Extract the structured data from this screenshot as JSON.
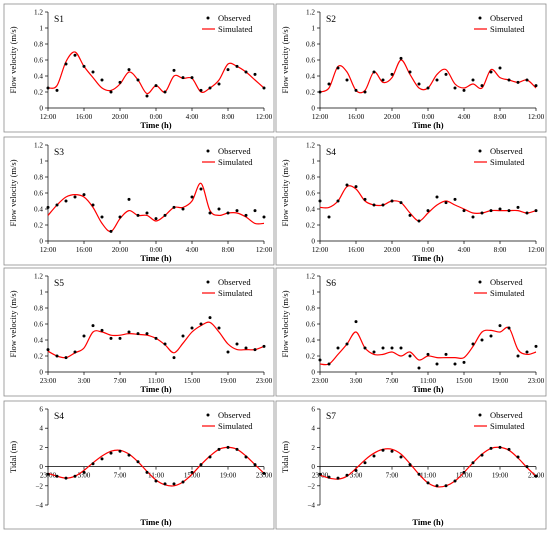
{
  "chart_data": [
    {
      "type": "line",
      "station": "S1",
      "xlabel": "Time (h)",
      "ylabel": "Flow velocity (m/s)",
      "ylim": [
        0,
        1.2
      ],
      "yticks": [
        "0",
        "0.2",
        "0.4",
        "0.6",
        "0.8",
        "1",
        "1.2"
      ],
      "xticks": [
        "12:00",
        "16:00",
        "20:00",
        "0:00",
        "4:00",
        "8:00",
        "12:00"
      ],
      "xlim": [
        0,
        24
      ],
      "legend": [
        "Observed",
        "Simulated"
      ],
      "series": [
        {
          "name": "Observed",
          "x": [
            0,
            1,
            2,
            3,
            4,
            5,
            6,
            7,
            8,
            9,
            10,
            11,
            12,
            13,
            14,
            15,
            16,
            17,
            18,
            19,
            20,
            21,
            22,
            23,
            24
          ],
          "y": [
            0.25,
            0.22,
            0.55,
            0.66,
            0.52,
            0.45,
            0.35,
            0.2,
            0.32,
            0.48,
            0.35,
            0.15,
            0.28,
            0.2,
            0.47,
            0.38,
            0.38,
            0.22,
            0.25,
            0.3,
            0.48,
            0.52,
            0.45,
            0.42,
            0.25
          ]
        },
        {
          "name": "Simulated",
          "x": [
            0,
            1,
            2,
            3,
            4,
            5,
            6,
            7,
            8,
            9,
            10,
            11,
            12,
            13,
            14,
            15,
            16,
            17,
            18,
            19,
            20,
            21,
            22,
            23,
            24
          ],
          "y": [
            0.25,
            0.28,
            0.58,
            0.7,
            0.52,
            0.38,
            0.25,
            0.22,
            0.3,
            0.45,
            0.35,
            0.18,
            0.28,
            0.2,
            0.4,
            0.37,
            0.37,
            0.2,
            0.25,
            0.35,
            0.55,
            0.52,
            0.45,
            0.35,
            0.25
          ]
        }
      ]
    },
    {
      "type": "line",
      "station": "S2",
      "xlabel": "Time (h)",
      "ylabel": "Flow velocity (m/s)",
      "ylim": [
        0,
        1.2
      ],
      "yticks": [
        "0",
        "0.2",
        "0.4",
        "0.6",
        "0.8",
        "1",
        "1.2"
      ],
      "xticks": [
        "12:00",
        "16:00",
        "20:00",
        "0:00",
        "4:00",
        "8:00",
        "12:00"
      ],
      "xlim": [
        0,
        24
      ],
      "legend": [
        "Observed",
        "Simulated"
      ],
      "series": [
        {
          "name": "Observed",
          "x": [
            0,
            1,
            2,
            3,
            4,
            5,
            6,
            7,
            8,
            9,
            10,
            11,
            12,
            13,
            14,
            15,
            16,
            17,
            18,
            19,
            20,
            21,
            22,
            23,
            24
          ],
          "y": [
            0.2,
            0.3,
            0.5,
            0.35,
            0.22,
            0.2,
            0.45,
            0.35,
            0.42,
            0.62,
            0.45,
            0.3,
            0.25,
            0.35,
            0.42,
            0.25,
            0.22,
            0.35,
            0.28,
            0.45,
            0.5,
            0.35,
            0.32,
            0.35,
            0.28
          ]
        },
        {
          "name": "Simulated",
          "x": [
            0,
            1,
            2,
            3,
            4,
            5,
            6,
            7,
            8,
            9,
            10,
            11,
            12,
            13,
            14,
            15,
            16,
            17,
            18,
            19,
            20,
            21,
            22,
            23,
            24
          ],
          "y": [
            0.2,
            0.25,
            0.52,
            0.45,
            0.22,
            0.22,
            0.45,
            0.32,
            0.38,
            0.6,
            0.42,
            0.25,
            0.25,
            0.42,
            0.48,
            0.3,
            0.25,
            0.3,
            0.25,
            0.48,
            0.38,
            0.35,
            0.32,
            0.35,
            0.25
          ]
        }
      ]
    },
    {
      "type": "line",
      "station": "S3",
      "xlabel": "Time (h)",
      "ylabel": "Flow velocity (m/s)",
      "ylim": [
        0,
        1.2
      ],
      "yticks": [
        "0",
        "0.2",
        "0.4",
        "0.6",
        "0.8",
        "1",
        "1.2"
      ],
      "xticks": [
        "12:00",
        "16:00",
        "20:00",
        "0:00",
        "4:00",
        "8:00",
        "12:00"
      ],
      "xlim": [
        0,
        24
      ],
      "legend": [
        "Observed",
        "Simulated"
      ],
      "series": [
        {
          "name": "Observed",
          "x": [
            0,
            1,
            2,
            3,
            4,
            5,
            6,
            7,
            8,
            9,
            10,
            11,
            12,
            13,
            14,
            15,
            16,
            17,
            18,
            19,
            20,
            21,
            22,
            23,
            24
          ],
          "y": [
            0.42,
            0.45,
            0.5,
            0.55,
            0.58,
            0.45,
            0.3,
            0.12,
            0.3,
            0.52,
            0.32,
            0.35,
            0.28,
            0.32,
            0.42,
            0.4,
            0.55,
            0.65,
            0.35,
            0.4,
            0.35,
            0.38,
            0.32,
            0.38,
            0.3
          ]
        },
        {
          "name": "Simulated",
          "x": [
            0,
            1,
            2,
            3,
            4,
            5,
            6,
            7,
            8,
            9,
            10,
            11,
            12,
            13,
            14,
            15,
            16,
            17,
            18,
            19,
            20,
            21,
            22,
            23,
            24
          ],
          "y": [
            0.32,
            0.45,
            0.55,
            0.58,
            0.55,
            0.42,
            0.22,
            0.12,
            0.28,
            0.38,
            0.32,
            0.32,
            0.25,
            0.32,
            0.42,
            0.42,
            0.5,
            0.72,
            0.38,
            0.32,
            0.35,
            0.35,
            0.3,
            0.22,
            0.22
          ]
        }
      ]
    },
    {
      "type": "line",
      "station": "S4",
      "xlabel": "Time (h)",
      "ylabel": "Flow velocity (m/s)",
      "ylim": [
        0,
        1.2
      ],
      "yticks": [
        "0",
        "0.2",
        "0.4",
        "0.6",
        "0.8",
        "1",
        "1.2"
      ],
      "xticks": [
        "12:00",
        "16:00",
        "20:00",
        "0:00",
        "4:00",
        "8:00",
        "12:00"
      ],
      "xlim": [
        0,
        24
      ],
      "legend": [
        "Observed",
        "Simulated"
      ],
      "series": [
        {
          "name": "Observed",
          "x": [
            0,
            1,
            2,
            3,
            4,
            5,
            6,
            7,
            8,
            9,
            10,
            11,
            12,
            13,
            14,
            15,
            16,
            17,
            18,
            19,
            20,
            21,
            22,
            23,
            24
          ],
          "y": [
            0.5,
            0.3,
            0.5,
            0.7,
            0.68,
            0.52,
            0.45,
            0.45,
            0.5,
            0.48,
            0.32,
            0.25,
            0.38,
            0.55,
            0.48,
            0.52,
            0.38,
            0.3,
            0.35,
            0.38,
            0.4,
            0.38,
            0.42,
            0.35,
            0.38
          ]
        },
        {
          "name": "Simulated",
          "x": [
            0,
            1,
            2,
            3,
            4,
            5,
            6,
            7,
            8,
            9,
            10,
            11,
            12,
            13,
            14,
            15,
            16,
            17,
            18,
            19,
            20,
            21,
            22,
            23,
            24
          ],
          "y": [
            0.42,
            0.42,
            0.5,
            0.68,
            0.65,
            0.5,
            0.45,
            0.45,
            0.5,
            0.48,
            0.35,
            0.25,
            0.35,
            0.45,
            0.5,
            0.45,
            0.4,
            0.35,
            0.35,
            0.38,
            0.38,
            0.38,
            0.38,
            0.35,
            0.38
          ]
        }
      ]
    },
    {
      "type": "line",
      "station": "S5",
      "xlabel": "Time (h)",
      "ylabel": "Flow velocity (m/s)",
      "ylim": [
        0,
        1.2
      ],
      "yticks": [
        "0",
        "0.2",
        "0.4",
        "0.6",
        "0.8",
        "1",
        "1.2"
      ],
      "xticks": [
        "23:00",
        "3:00",
        "7:00",
        "11:00",
        "15:00",
        "19:00",
        "23:00"
      ],
      "xlim": [
        0,
        24
      ],
      "legend": [
        "Observed",
        "Simulated"
      ],
      "series": [
        {
          "name": "Observed",
          "x": [
            0,
            1,
            2,
            3,
            4,
            5,
            6,
            7,
            8,
            9,
            10,
            11,
            12,
            13,
            14,
            15,
            16,
            17,
            18,
            19,
            20,
            21,
            22,
            23,
            24
          ],
          "y": [
            0.28,
            0.2,
            0.18,
            0.25,
            0.45,
            0.58,
            0.52,
            0.42,
            0.42,
            0.5,
            0.48,
            0.48,
            0.42,
            0.35,
            0.18,
            0.45,
            0.55,
            0.6,
            0.68,
            0.55,
            0.25,
            0.35,
            0.3,
            0.28,
            0.32
          ]
        },
        {
          "name": "Simulated",
          "x": [
            0,
            1,
            2,
            3,
            4,
            5,
            6,
            7,
            8,
            9,
            10,
            11,
            12,
            13,
            14,
            15,
            16,
            17,
            18,
            19,
            20,
            21,
            22,
            23,
            24
          ],
          "y": [
            0.26,
            0.2,
            0.18,
            0.24,
            0.3,
            0.5,
            0.5,
            0.46,
            0.46,
            0.48,
            0.47,
            0.46,
            0.42,
            0.34,
            0.24,
            0.36,
            0.5,
            0.58,
            0.62,
            0.5,
            0.35,
            0.28,
            0.28,
            0.28,
            0.32
          ]
        }
      ]
    },
    {
      "type": "line",
      "station": "S6",
      "xlabel": "Time (h)",
      "ylabel": "Flow velocity (m/s)",
      "ylim": [
        0,
        1.2
      ],
      "yticks": [
        "0",
        "0.2",
        "0.4",
        "0.6",
        "0.8",
        "1",
        "1.2"
      ],
      "xticks": [
        "23:00",
        "3:00",
        "7:00",
        "11:00",
        "15:00",
        "19:00",
        "23:00"
      ],
      "xlim": [
        0,
        24
      ],
      "legend": [
        "Observed",
        "Simulated"
      ],
      "series": [
        {
          "name": "Observed",
          "x": [
            0,
            1,
            2,
            3,
            4,
            5,
            6,
            7,
            8,
            9,
            10,
            11,
            12,
            13,
            14,
            15,
            16,
            17,
            18,
            19,
            20,
            21,
            22,
            23,
            24
          ],
          "y": [
            0.15,
            0.1,
            0.3,
            0.35,
            0.63,
            0.3,
            0.25,
            0.3,
            0.3,
            0.3,
            0.2,
            0.05,
            0.22,
            0.1,
            0.22,
            0.1,
            0.12,
            0.35,
            0.4,
            0.45,
            0.58,
            0.55,
            0.2,
            0.25,
            0.32
          ]
        },
        {
          "name": "Simulated",
          "x": [
            0,
            1,
            2,
            3,
            4,
            5,
            6,
            7,
            8,
            9,
            10,
            11,
            12,
            13,
            14,
            15,
            16,
            17,
            18,
            19,
            20,
            21,
            22,
            23,
            24
          ],
          "y": [
            0.1,
            0.1,
            0.22,
            0.35,
            0.5,
            0.3,
            0.22,
            0.22,
            0.25,
            0.2,
            0.25,
            0.15,
            0.2,
            0.18,
            0.18,
            0.18,
            0.18,
            0.32,
            0.5,
            0.52,
            0.5,
            0.55,
            0.28,
            0.22,
            0.25
          ]
        }
      ]
    },
    {
      "type": "line",
      "station": "S4",
      "xlabel": "Time (h)",
      "ylabel": "Tidal (m)",
      "ylim": [
        -4,
        6
      ],
      "yticks": [
        "−4",
        "−2",
        "0",
        "2",
        "4",
        "6"
      ],
      "xticks": [
        "23:00",
        "3:00",
        "7:00",
        "11:00",
        "15:00",
        "19:00",
        "23:00"
      ],
      "xlim": [
        0,
        24
      ],
      "legend": [
        "Observed",
        "Simulated"
      ],
      "series": [
        {
          "name": "Observed",
          "x": [
            0,
            1,
            2,
            3,
            4,
            5,
            6,
            7,
            8,
            9,
            10,
            11,
            12,
            13,
            14,
            15,
            16,
            17,
            18,
            19,
            20,
            21,
            22,
            23,
            24
          ],
          "y": [
            -0.8,
            -1.0,
            -1.2,
            -1.0,
            -0.6,
            0.3,
            0.8,
            1.4,
            1.6,
            1.2,
            0.5,
            -0.6,
            -1.5,
            -1.8,
            -1.8,
            -1.6,
            -0.6,
            0.2,
            1.0,
            1.8,
            2.0,
            1.8,
            1.0,
            0.2,
            -0.7
          ]
        },
        {
          "name": "Simulated",
          "x": [
            0,
            1,
            2,
            3,
            4,
            5,
            6,
            7,
            8,
            9,
            10,
            11,
            12,
            13,
            14,
            15,
            16,
            17,
            18,
            19,
            20,
            21,
            22,
            23,
            24
          ],
          "y": [
            -0.7,
            -1.0,
            -1.2,
            -1.0,
            -0.4,
            0.4,
            1.1,
            1.6,
            1.7,
            1.3,
            0.5,
            -0.5,
            -1.4,
            -1.9,
            -2.0,
            -1.6,
            -0.8,
            0.2,
            1.1,
            1.8,
            2.0,
            1.8,
            1.1,
            0.2,
            -0.7
          ]
        }
      ]
    },
    {
      "type": "line",
      "station": "S7",
      "xlabel": "Time (h)",
      "ylabel": "Tidal (m)",
      "ylim": [
        -4,
        6
      ],
      "yticks": [
        "−4",
        "−2",
        "0",
        "2",
        "4",
        "6"
      ],
      "xticks": [
        "23:00",
        "3:00",
        "7:00",
        "11:00",
        "15:00",
        "19:00",
        "23:00"
      ],
      "xlim": [
        0,
        24
      ],
      "legend": [
        "Observed",
        "Simulated"
      ],
      "series": [
        {
          "name": "Observed",
          "x": [
            0,
            1,
            2,
            3,
            4,
            5,
            6,
            7,
            8,
            9,
            10,
            11,
            12,
            13,
            14,
            15,
            16,
            17,
            18,
            19,
            20,
            21,
            22,
            23,
            24
          ],
          "y": [
            -0.8,
            -1.1,
            -1.2,
            -0.9,
            -0.4,
            0.4,
            1.1,
            1.7,
            1.6,
            1.0,
            0.2,
            -0.8,
            -1.7,
            -2.0,
            -2.0,
            -1.5,
            -0.6,
            0.4,
            1.2,
            1.9,
            2.0,
            1.8,
            1.0,
            0.0,
            -1.0
          ]
        },
        {
          "name": "Simulated",
          "x": [
            0,
            1,
            2,
            3,
            4,
            5,
            6,
            7,
            8,
            9,
            10,
            11,
            12,
            13,
            14,
            15,
            16,
            17,
            18,
            19,
            20,
            21,
            22,
            23,
            24
          ],
          "y": [
            -0.9,
            -1.2,
            -1.3,
            -1.0,
            -0.2,
            0.7,
            1.4,
            1.8,
            1.8,
            1.3,
            0.3,
            -0.8,
            -1.7,
            -2.1,
            -2.0,
            -1.5,
            -0.6,
            0.4,
            1.3,
            1.9,
            2.0,
            1.7,
            0.9,
            -0.1,
            -1.0
          ]
        }
      ]
    }
  ]
}
